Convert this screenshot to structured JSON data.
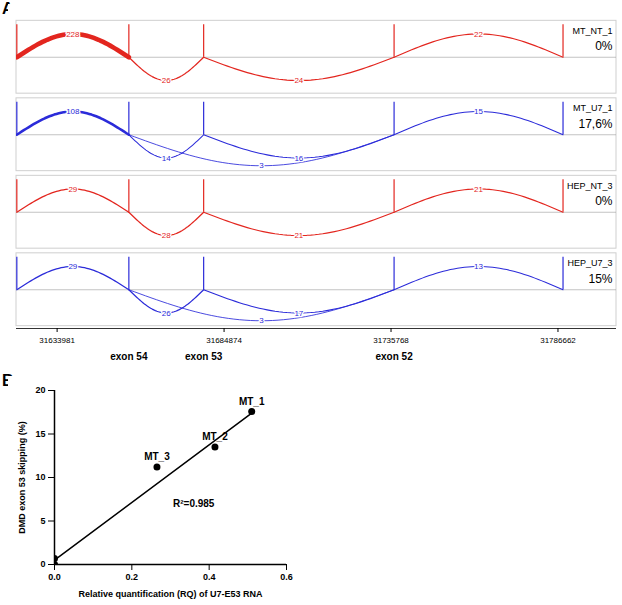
{
  "chart_data": [
    {
      "type": "sashimi",
      "title": "A",
      "xlim": [
        31621600,
        31804500
      ],
      "xticks": [
        31633981,
        31684874,
        31735768,
        31786662
      ],
      "tick_labels": "x",
      "exon_positions": [
        31621700,
        31655850,
        31678650,
        31736700,
        31788200
      ],
      "exon_labels": [
        null,
        "exon 54",
        "exon 53",
        "exon 52",
        null
      ],
      "series": [
        {
          "name": "MT_NT_1",
          "color": "#e3261f",
          "skipping_label": "0%",
          "junctions": [
            {
              "start": 31621700,
              "end": 31655850,
              "count": 228
            },
            {
              "start": 31655850,
              "end": 31678650,
              "count": 26
            },
            {
              "start": 31678650,
              "end": 31736700,
              "count": 24
            },
            {
              "start": 31736700,
              "end": 31788200,
              "count": 22
            }
          ]
        },
        {
          "name": "MT_U7_1",
          "color": "#2b2bd9",
          "skipping_label": "17,6%",
          "junctions": [
            {
              "start": 31621700,
              "end": 31655850,
              "count": 108
            },
            {
              "start": 31655850,
              "end": 31678650,
              "count": 14
            },
            {
              "start": 31655850,
              "end": 31736700,
              "count": 3
            },
            {
              "start": 31678650,
              "end": 31736700,
              "count": 16
            },
            {
              "start": 31736700,
              "end": 31788200,
              "count": 15
            }
          ]
        },
        {
          "name": "HEP_NT_3",
          "color": "#e3261f",
          "skipping_label": "0%",
          "junctions": [
            {
              "start": 31621700,
              "end": 31655850,
              "count": 29
            },
            {
              "start": 31655850,
              "end": 31678650,
              "count": 28
            },
            {
              "start": 31678650,
              "end": 31736700,
              "count": 21
            },
            {
              "start": 31736700,
              "end": 31788200,
              "count": 21
            }
          ]
        },
        {
          "name": "HEP_U7_3",
          "color": "#2b2bd9",
          "skipping_label": "15%",
          "junctions": [
            {
              "start": 31621700,
              "end": 31655850,
              "count": 29
            },
            {
              "start": 31655850,
              "end": 31678650,
              "count": 26
            },
            {
              "start": 31655850,
              "end": 31736700,
              "count": 3
            },
            {
              "start": 31678650,
              "end": 31736700,
              "count": 17
            },
            {
              "start": 31736700,
              "end": 31788200,
              "count": 13
            }
          ]
        }
      ]
    },
    {
      "type": "scatter",
      "title": "B",
      "x_label": "Relative quantification (RQ) of U7-E53 RNA",
      "y_label": "DMD exon 53 skipping (%)",
      "xlim": [
        0,
        0.6
      ],
      "xticks": [
        {
          "value": 0,
          "label": "0.0"
        },
        0.2,
        0.4,
        0.6
      ],
      "ylim": [
        0,
        20
      ],
      "yticks": [
        0,
        5,
        10,
        15,
        20
      ],
      "x": [
        0,
        0,
        0.265,
        0.415,
        0.51
      ],
      "values": [
        0,
        0.7,
        11.2,
        13.5,
        17.6
      ],
      "point_labels": [
        null,
        null,
        "MT_3",
        "MT_2",
        "MT_1"
      ],
      "color": "#000000",
      "marker": "circle",
      "fit": {
        "type": "line",
        "x": [
          0,
          0.51
        ],
        "values": [
          0.5,
          17.4
        ]
      },
      "annotations": [
        {
          "text": "R²=0.985",
          "x": 0.36,
          "y": 7
        }
      ]
    }
  ]
}
